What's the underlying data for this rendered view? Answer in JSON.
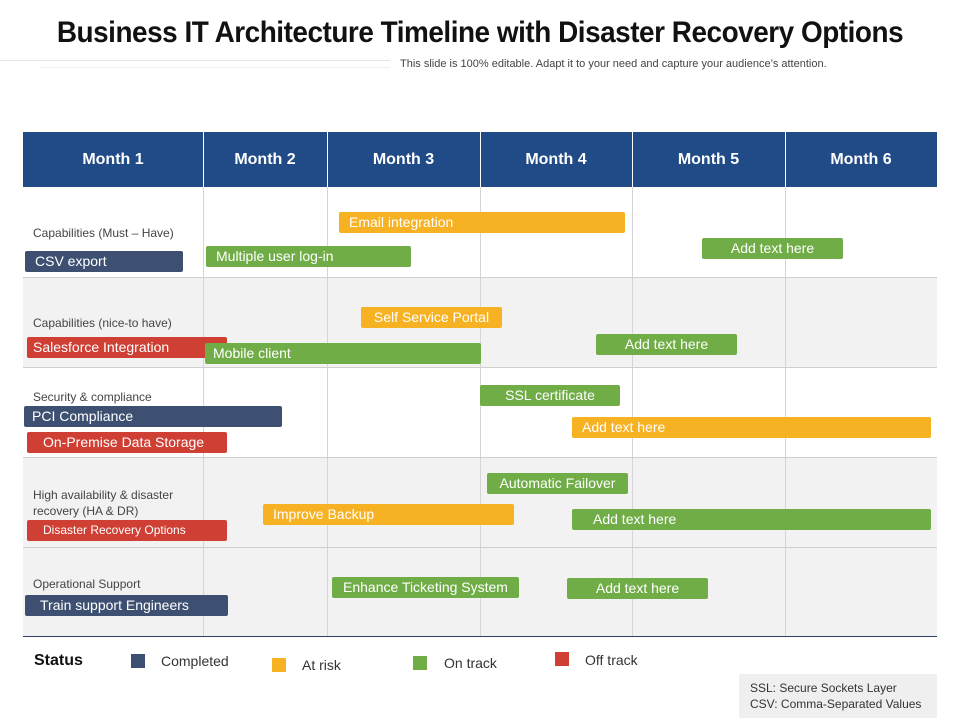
{
  "title": "Business IT Architecture Timeline with Disaster Recovery Options",
  "subtitle": "This slide is 100% editable. Adapt it to your need and capture your audience’s attention.",
  "months": [
    "Month 1",
    "Month 2",
    "Month 3",
    "Month 4",
    "Month 5",
    "Month 6"
  ],
  "rows": [
    {
      "label": "Capabilities (Must – Have)"
    },
    {
      "label": "Capabilities (nice-to have)"
    },
    {
      "label": "Security & compliance"
    },
    {
      "label": "High availability & disaster recovery (HA & DR)"
    },
    {
      "label": "Operational Support"
    }
  ],
  "bars": {
    "csv_export": {
      "label": "CSV export",
      "status": "Completed"
    },
    "multiple_user_login": {
      "label": "Multiple user log-in",
      "status": "On track"
    },
    "email_integration": {
      "label": "Email integration",
      "status": "At risk"
    },
    "r1_add_text": {
      "label": "Add text here",
      "status": "On track"
    },
    "salesforce_integration": {
      "label": "Salesforce Integration",
      "status": "Off track"
    },
    "mobile_client": {
      "label": "Mobile client",
      "status": "On track"
    },
    "self_service_portal": {
      "label": "Self Service Portal",
      "status": "At risk"
    },
    "r2_add_text": {
      "label": "Add text here",
      "status": "On track"
    },
    "pci_compliance": {
      "label": "PCI Compliance",
      "status": "Completed"
    },
    "on_premise_storage": {
      "label": "On-Premise Data Storage",
      "status": "Off track"
    },
    "ssl_certificate": {
      "label": "SSL certificate",
      "status": "On track"
    },
    "r3_add_text": {
      "label": "Add text here",
      "status": "At risk"
    },
    "disaster_recovery_options": {
      "label": "Disaster Recovery Options",
      "status": "Off track"
    },
    "improve_backup": {
      "label": "Improve Backup",
      "status": "At risk"
    },
    "automatic_failover": {
      "label": "Automatic Failover",
      "status": "On track"
    },
    "r4_add_text": {
      "label": "Add text here",
      "status": "On track"
    },
    "train_support_engineers": {
      "label": "Train support Engineers",
      "status": "Completed"
    },
    "enhance_ticketing": {
      "label": "Enhance Ticketing System",
      "status": "On track"
    },
    "r5_add_text": {
      "label": "Add text here",
      "status": "On track"
    }
  },
  "legend": {
    "title": "Status",
    "items": [
      {
        "label": "Completed",
        "color": "#3e5071"
      },
      {
        "label": "At risk",
        "color": "#f6b223"
      },
      {
        "label": "On track",
        "color": "#70ad47"
      },
      {
        "label": "Off track",
        "color": "#cf3f33"
      }
    ]
  },
  "abbreviations": [
    "SSL: Secure Sockets Layer",
    "CSV: Comma-Separated Values"
  ],
  "colors": {
    "header": "#204b87",
    "completed": "#3e5071",
    "at_risk": "#f6b223",
    "on_track": "#70ad47",
    "off_track": "#cf3f33"
  }
}
